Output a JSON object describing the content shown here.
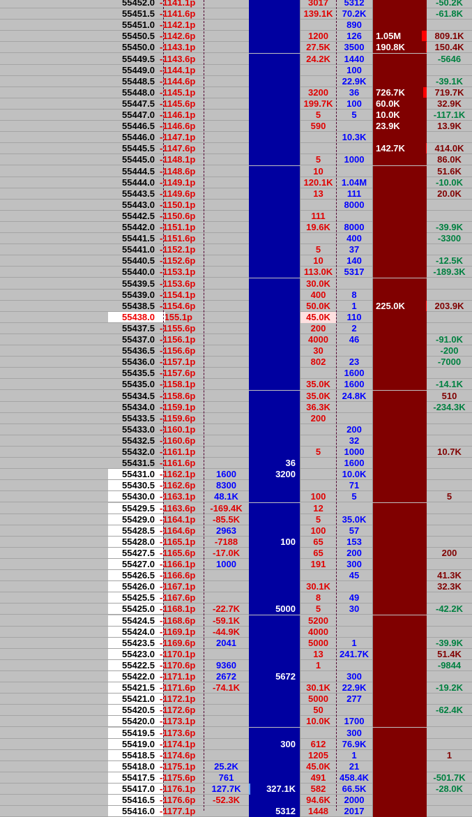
{
  "ladder": {
    "current_price": "55438.0",
    "colors": {
      "bid_bg": "#0000a0",
      "ask_bg": "#800000",
      "background": "#c0c0c0",
      "negative": "#008040",
      "positive": "#800000"
    },
    "rows": [
      [
        "55452.0",
        "-1141.1p",
        "",
        "",
        "3017",
        "5312",
        "",
        "-50.2K"
      ],
      [
        "55451.5",
        "-1141.6p",
        "",
        "",
        "139.1K",
        "70.2K",
        "",
        "-61.8K"
      ],
      [
        "55451.0",
        "-1142.1p",
        "",
        "",
        "",
        "890",
        "",
        ""
      ],
      [
        "55450.5",
        "-1142.6p",
        "",
        "",
        "1200",
        "126",
        "1.05M",
        "809.1K"
      ],
      [
        "55450.0",
        "-1143.1p",
        "",
        "",
        "27.5K",
        "3500",
        "190.8K",
        "150.4K"
      ],
      [
        "55449.5",
        "-1143.6p",
        "",
        "",
        "24.2K",
        "1440",
        "",
        "-5646"
      ],
      [
        "55449.0",
        "-1144.1p",
        "",
        "",
        "",
        "100",
        "",
        ""
      ],
      [
        "55448.5",
        "-1144.6p",
        "",
        "",
        "",
        "22.9K",
        "",
        "-39.1K"
      ],
      [
        "55448.0",
        "-1145.1p",
        "",
        "",
        "3200",
        "36",
        "726.7K",
        "719.7K"
      ],
      [
        "55447.5",
        "-1145.6p",
        "",
        "",
        "199.7K",
        "100",
        "60.0K",
        "32.9K"
      ],
      [
        "55447.0",
        "-1146.1p",
        "",
        "",
        "5",
        "5",
        "10.0K",
        "-117.1K"
      ],
      [
        "55446.5",
        "-1146.6p",
        "",
        "",
        "590",
        "",
        "23.9K",
        "13.9K"
      ],
      [
        "55446.0",
        "-1147.1p",
        "",
        "",
        "",
        "10.3K",
        "",
        ""
      ],
      [
        "55445.5",
        "-1147.6p",
        "",
        "",
        "",
        "",
        "142.7K",
        "414.0K"
      ],
      [
        "55445.0",
        "-1148.1p",
        "",
        "",
        "5",
        "1000",
        "",
        "86.0K"
      ],
      [
        "55444.5",
        "-1148.6p",
        "",
        "",
        "10",
        "",
        "",
        "51.6K"
      ],
      [
        "55444.0",
        "-1149.1p",
        "",
        "",
        "120.1K",
        "1.04M",
        "",
        "-10.0K"
      ],
      [
        "55443.5",
        "-1149.6p",
        "",
        "",
        "13",
        "111",
        "",
        "20.0K"
      ],
      [
        "55443.0",
        "-1150.1p",
        "",
        "",
        "",
        "8000",
        "",
        ""
      ],
      [
        "55442.5",
        "-1150.6p",
        "",
        "",
        "111",
        "",
        "",
        ""
      ],
      [
        "55442.0",
        "-1151.1p",
        "",
        "",
        "19.6K",
        "8000",
        "",
        "-39.9K"
      ],
      [
        "55441.5",
        "-1151.6p",
        "",
        "",
        "",
        "400",
        "",
        "-3300"
      ],
      [
        "55441.0",
        "-1152.1p",
        "",
        "",
        "5",
        "37",
        "",
        ""
      ],
      [
        "55440.5",
        "-1152.6p",
        "",
        "",
        "10",
        "140",
        "",
        "-12.5K"
      ],
      [
        "55440.0",
        "-1153.1p",
        "",
        "",
        "113.0K",
        "5317",
        "",
        "-189.3K"
      ],
      [
        "55439.5",
        "-1153.6p",
        "",
        "",
        "30.0K",
        "",
        "",
        ""
      ],
      [
        "55439.0",
        "-1154.1p",
        "",
        "",
        "400",
        "8",
        "",
        ""
      ],
      [
        "55438.5",
        "-1154.6p",
        "",
        "",
        "50.0K",
        "1",
        "225.0K",
        "203.9K"
      ],
      [
        "55438.0",
        "1155.1p",
        "",
        "",
        "45.0K",
        "110",
        "",
        ""
      ],
      [
        "55437.5",
        "-1155.6p",
        "",
        "",
        "200",
        "2",
        "",
        ""
      ],
      [
        "55437.0",
        "-1156.1p",
        "",
        "",
        "4000",
        "46",
        "",
        "-91.0K"
      ],
      [
        "55436.5",
        "-1156.6p",
        "",
        "",
        "30",
        "",
        "",
        "-200"
      ],
      [
        "55436.0",
        "-1157.1p",
        "",
        "",
        "802",
        "23",
        "",
        "-7000"
      ],
      [
        "55435.5",
        "-1157.6p",
        "",
        "",
        "",
        "1600",
        "",
        ""
      ],
      [
        "55435.0",
        "-1158.1p",
        "",
        "",
        "35.0K",
        "1600",
        "",
        "-14.1K"
      ],
      [
        "55434.5",
        "-1158.6p",
        "",
        "",
        "35.0K",
        "24.8K",
        "",
        "510"
      ],
      [
        "55434.0",
        "-1159.1p",
        "",
        "",
        "36.3K",
        "",
        "",
        "-234.3K"
      ],
      [
        "55433.5",
        "-1159.6p",
        "",
        "",
        "200",
        "",
        "",
        ""
      ],
      [
        "55433.0",
        "-1160.1p",
        "",
        "",
        "",
        "200",
        "",
        ""
      ],
      [
        "55432.5",
        "-1160.6p",
        "",
        "",
        "",
        "32",
        "",
        ""
      ],
      [
        "55432.0",
        "-1161.1p",
        "",
        "",
        "5",
        "1000",
        "",
        "10.7K"
      ],
      [
        "55431.5",
        "-1161.6p",
        "",
        "36",
        "",
        "1600",
        "",
        ""
      ],
      [
        "55431.0",
        "-1162.1p",
        "1600",
        "3200",
        "",
        "10.0K",
        "",
        ""
      ],
      [
        "55430.5",
        "-1162.6p",
        "8300",
        "",
        "",
        "71",
        "",
        ""
      ],
      [
        "55430.0",
        "-1163.1p",
        "48.1K",
        "",
        "100",
        "5",
        "",
        "5"
      ],
      [
        "55429.5",
        "-1163.6p",
        "-169.4K",
        "",
        "12",
        "",
        "",
        ""
      ],
      [
        "55429.0",
        "-1164.1p",
        "-85.5K",
        "",
        "5",
        "35.0K",
        "",
        ""
      ],
      [
        "55428.5",
        "-1164.6p",
        "2963",
        "",
        "100",
        "57",
        "",
        ""
      ],
      [
        "55428.0",
        "-1165.1p",
        "-7188",
        "100",
        "65",
        "153",
        "",
        ""
      ],
      [
        "55427.5",
        "-1165.6p",
        "-17.0K",
        "",
        "65",
        "200",
        "",
        "200"
      ],
      [
        "55427.0",
        "-1166.1p",
        "1000",
        "",
        "191",
        "300",
        "",
        ""
      ],
      [
        "55426.5",
        "-1166.6p",
        "",
        "",
        "",
        "45",
        "",
        "41.3K"
      ],
      [
        "55426.0",
        "-1167.1p",
        "",
        "",
        "30.1K",
        "",
        "",
        "32.3K"
      ],
      [
        "55425.5",
        "-1167.6p",
        "",
        "",
        "8",
        "49",
        "",
        ""
      ],
      [
        "55425.0",
        "-1168.1p",
        "-22.7K",
        "5000",
        "5",
        "30",
        "",
        "-42.2K"
      ],
      [
        "55424.5",
        "-1168.6p",
        "-59.1K",
        "",
        "5200",
        "",
        "",
        ""
      ],
      [
        "55424.0",
        "-1169.1p",
        "-44.9K",
        "",
        "4000",
        "",
        "",
        ""
      ],
      [
        "55423.5",
        "-1169.6p",
        "2041",
        "",
        "5000",
        "1",
        "",
        "-39.9K"
      ],
      [
        "55423.0",
        "-1170.1p",
        "",
        "",
        "13",
        "241.7K",
        "",
        "51.4K"
      ],
      [
        "55422.5",
        "-1170.6p",
        "9360",
        "",
        "1",
        "",
        "",
        "-9844"
      ],
      [
        "55422.0",
        "-1171.1p",
        "2672",
        "5672",
        "",
        "300",
        "",
        ""
      ],
      [
        "55421.5",
        "-1171.6p",
        "-74.1K",
        "",
        "30.1K",
        "22.9K",
        "",
        "-19.2K"
      ],
      [
        "55421.0",
        "-1172.1p",
        "",
        "",
        "5000",
        "277",
        "",
        ""
      ],
      [
        "55420.5",
        "-1172.6p",
        "",
        "",
        "50",
        "",
        "",
        "-62.4K"
      ],
      [
        "55420.0",
        "-1173.1p",
        "",
        "",
        "10.0K",
        "1700",
        "",
        ""
      ],
      [
        "55419.5",
        "-1173.6p",
        "",
        "",
        "",
        "300",
        "",
        ""
      ],
      [
        "55419.0",
        "-1174.1p",
        "",
        "300",
        "612",
        "76.9K",
        "",
        ""
      ],
      [
        "55418.5",
        "-1174.6p",
        "",
        "",
        "1205",
        "1",
        "",
        "1"
      ],
      [
        "55418.0",
        "-1175.1p",
        "25.2K",
        "",
        "45.0K",
        "21",
        "",
        ""
      ],
      [
        "55417.5",
        "-1175.6p",
        "761",
        "",
        "491",
        "458.4K",
        "",
        "-501.7K"
      ],
      [
        "55417.0",
        "-1176.1p",
        "127.7K",
        "327.1K",
        "582",
        "66.5K",
        "",
        "-28.0K"
      ],
      [
        "55416.5",
        "-1176.6p",
        "-52.3K",
        "",
        "94.6K",
        "2000",
        "",
        ""
      ],
      [
        "55416.0",
        "-1177.1p",
        "",
        "5312",
        "1448",
        "2017",
        "",
        ""
      ]
    ],
    "volume_markers": {
      "3": 1.0,
      "4": 0.15,
      "8": 0.7,
      "13": 0.15,
      "27": 0.15
    }
  }
}
